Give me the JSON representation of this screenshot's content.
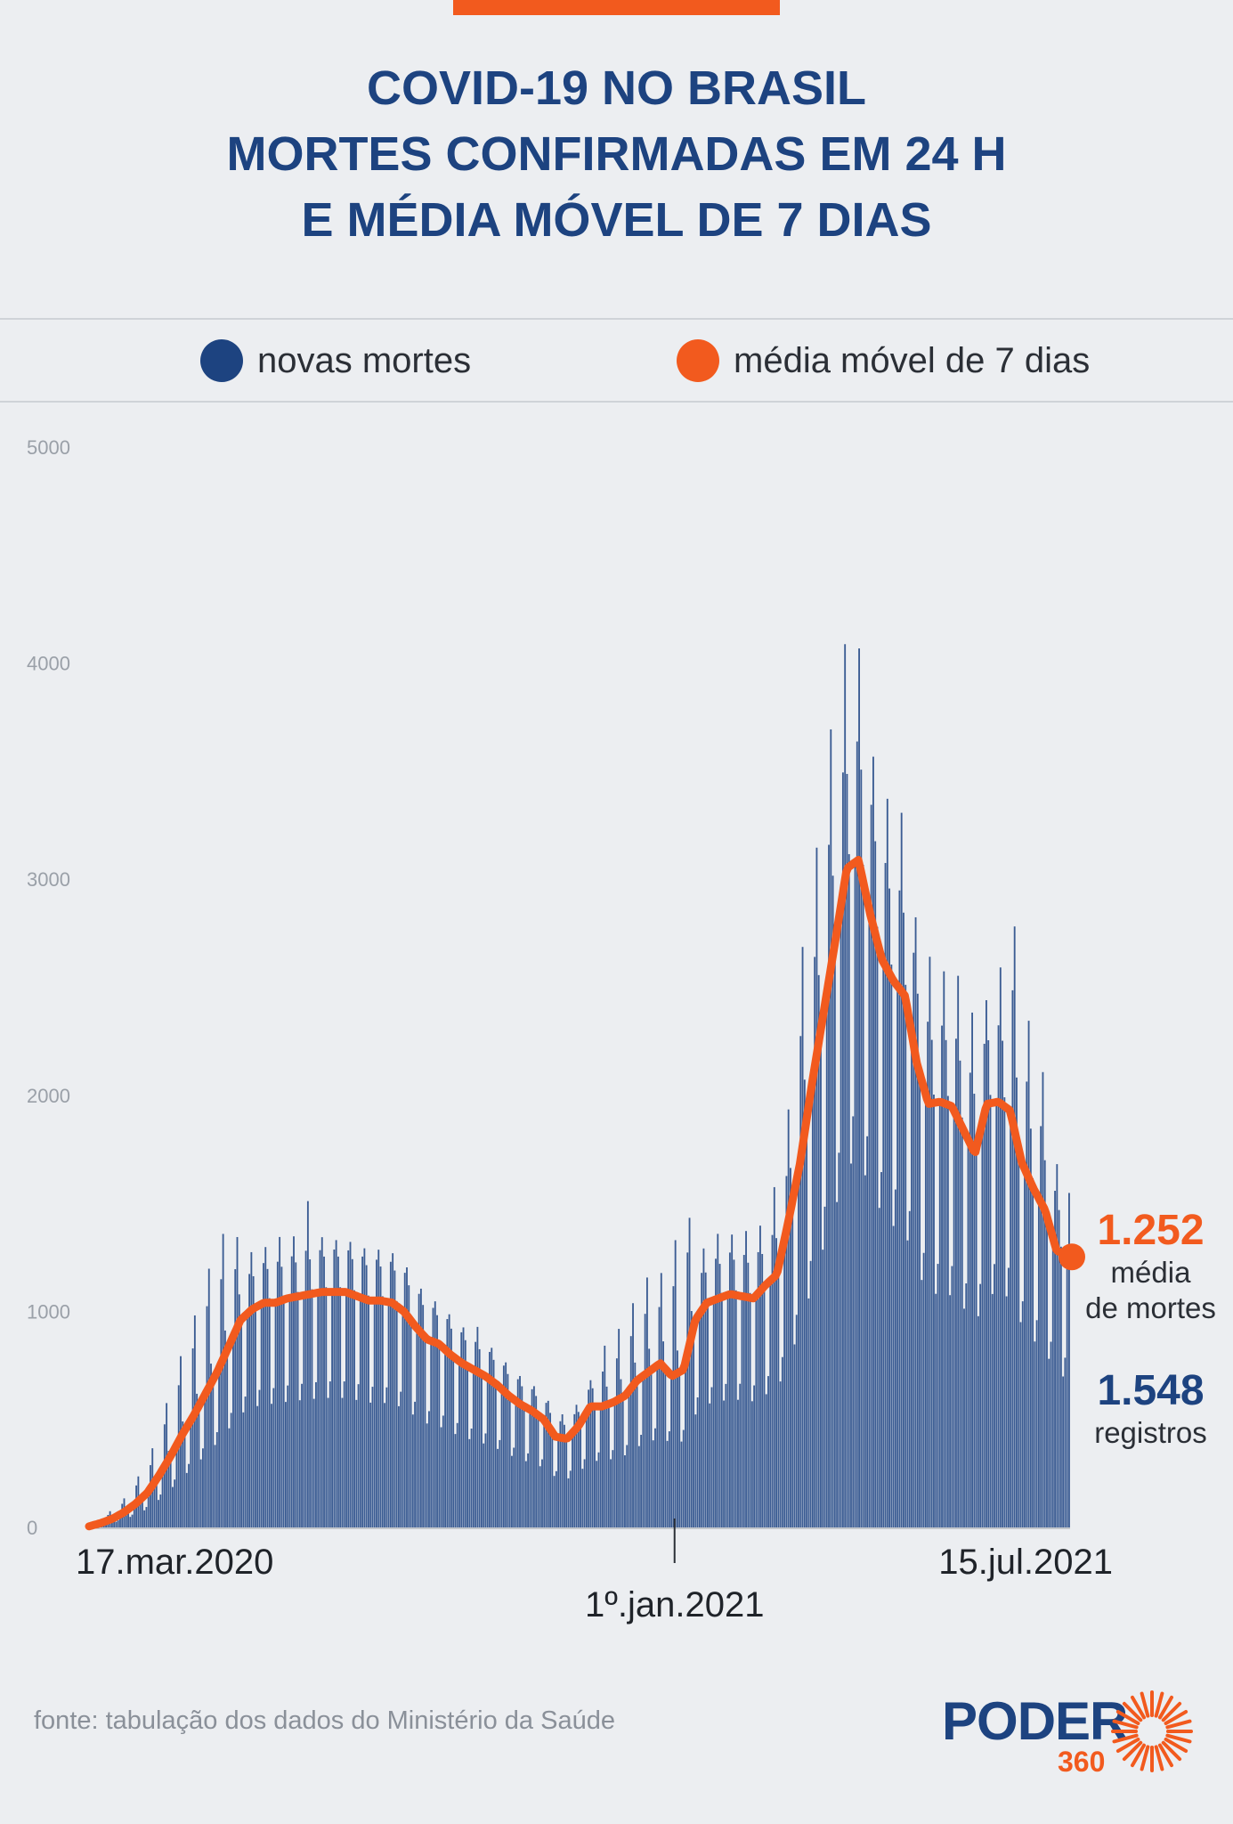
{
  "title": {
    "line1": "COVID-19 NO BRASIL",
    "line2": "MORTES CONFIRMADAS EM 24 H",
    "line3": "E MÉDIA MÓVEL DE 7 DIAS"
  },
  "legend": {
    "bars_label": "novas mortes",
    "line_label": "média móvel de 7 dias"
  },
  "colors": {
    "bars": "#1d4380",
    "line": "#f25a1e",
    "title": "#1d4380",
    "background": "#eceef1"
  },
  "annotations": {
    "avg_value": "1.252",
    "avg_label_1": "média",
    "avg_label_2": "de mortes",
    "records_value": "1.548",
    "records_label": "registros"
  },
  "source": "fonte: tabulação dos dados do Ministério da Saúde",
  "logo": {
    "brand": "PODER",
    "sub": "360"
  },
  "chart_data": {
    "type": "bar",
    "x_start": "17.mar.2020",
    "x_end": "15.jul.2021",
    "x_ticks": [
      {
        "label": "17.mar.2020",
        "date": "2020-03-17"
      },
      {
        "label": "1º.jan.2021",
        "date": "2021-01-01"
      },
      {
        "label": "15.jul.2021",
        "date": "2021-07-15"
      }
    ],
    "ylim": [
      0,
      5000
    ],
    "y_ticks": [
      0,
      1000,
      2000,
      3000,
      4000,
      5000
    ],
    "grid": false,
    "series": [
      {
        "name": "novas mortes",
        "type": "bar",
        "weekly_level": [
          5,
          20,
          40,
          70,
          110,
          160,
          240,
          330,
          430,
          520,
          620,
          720,
          840,
          960,
          1010,
          1040,
          1040,
          1060,
          1070,
          1080,
          1090,
          1090,
          1090,
          1070,
          1050,
          1050,
          1040,
          1000,
          930,
          870,
          850,
          800,
          760,
          730,
          700,
          660,
          610,
          570,
          540,
          500,
          420,
          410,
          470,
          560,
          560,
          580,
          610,
          680,
          720,
          760,
          700,
          730,
          960,
          1040,
          1060,
          1080,
          1070,
          1060,
          1120,
          1170,
          1420,
          1690,
          2050,
          2380,
          2710,
          3050,
          3090,
          2840,
          2630,
          2530,
          2460,
          2150,
          1960,
          1970,
          1950,
          1840,
          1730,
          1960,
          1970,
          1930,
          1690,
          1570,
          1470,
          1280,
          1260
        ],
        "weekly_peak": [
          10,
          40,
          90,
          140,
          230,
          300,
          500,
          650,
          850,
          1000,
          1200,
          1300,
          1500,
          1300,
          1300,
          1320,
          1380,
          1350,
          1400,
          1600,
          1350,
          1320,
          1300,
          1250,
          1350,
          1300,
          1200,
          1150,
          1100,
          1050,
          1000,
          950,
          920,
          980,
          850,
          800,
          700,
          680,
          650,
          620,
          550,
          520,
          600,
          700,
          850,
          900,
          1000,
          1100,
          1200,
          1200,
          1300,
          1550,
          1350,
          1300,
          1400,
          1380,
          1420,
          1350,
          1500,
          1650,
          2000,
          2700,
          3000,
          3600,
          3900,
          4250,
          4150,
          3700,
          3400,
          3500,
          3300,
          2800,
          2700,
          2600,
          2700,
          2500,
          2400,
          2500,
          2600,
          3000,
          2500,
          2300,
          2100,
          1700,
          1650
        ],
        "daily_modulation": [
          0.55,
          0.62,
          1.0,
          1.18,
          1.22,
          1.15,
          1.02
        ],
        "last_value": 1548
      },
      {
        "name": "média móvel de 7 dias",
        "type": "line",
        "weekly_values": [
          5,
          20,
          40,
          70,
          110,
          160,
          240,
          330,
          430,
          520,
          620,
          720,
          840,
          960,
          1010,
          1040,
          1040,
          1060,
          1070,
          1080,
          1090,
          1090,
          1090,
          1070,
          1050,
          1050,
          1040,
          1000,
          930,
          870,
          850,
          800,
          760,
          730,
          700,
          660,
          610,
          570,
          540,
          500,
          420,
          410,
          470,
          560,
          560,
          580,
          610,
          680,
          720,
          760,
          700,
          730,
          960,
          1040,
          1060,
          1080,
          1070,
          1060,
          1120,
          1170,
          1420,
          1690,
          2050,
          2380,
          2710,
          3050,
          3090,
          2840,
          2630,
          2530,
          2460,
          2150,
          1960,
          1970,
          1950,
          1840,
          1730,
          1960,
          1970,
          1930,
          1690,
          1570,
          1470,
          1280,
          1260
        ],
        "last_value": 1252
      }
    ]
  }
}
